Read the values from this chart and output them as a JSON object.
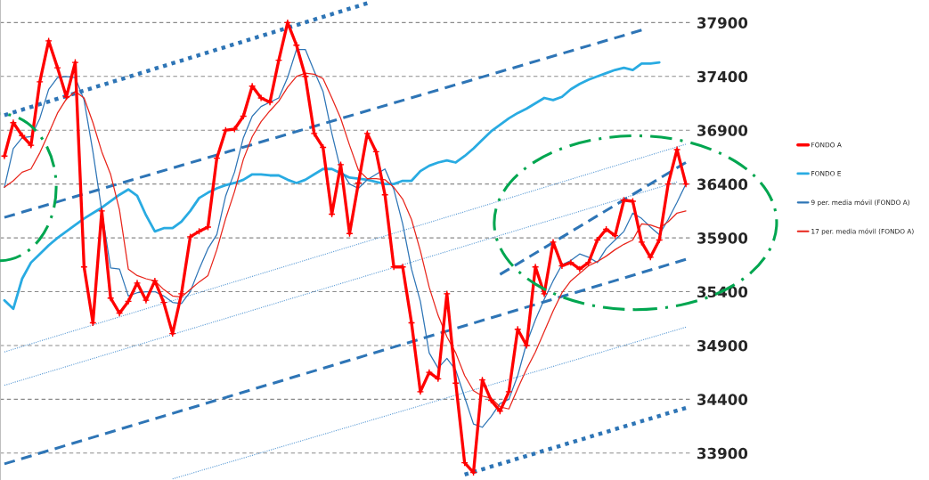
{
  "chart_data": {
    "type": "line",
    "categories": [
      null,
      null,
      null,
      null,
      null,
      null,
      null,
      null,
      null,
      null,
      null,
      null,
      null,
      null,
      null,
      null,
      null,
      null,
      null,
      null,
      null,
      null,
      null,
      null,
      null,
      null,
      null,
      null,
      null,
      null,
      null,
      null,
      null,
      null,
      null,
      null,
      null,
      null,
      null,
      null,
      null,
      null,
      null,
      null,
      null,
      null,
      null,
      null,
      null,
      null,
      null,
      null,
      null,
      null,
      null,
      null,
      null,
      null,
      null,
      null,
      null,
      null,
      null,
      null,
      null,
      null,
      null,
      null,
      null,
      null,
      null,
      null,
      null,
      null,
      null,
      null,
      null,
      null
    ],
    "ylim": [
      33650,
      38110
    ],
    "yticks": [
      33900,
      34400,
      34900,
      35400,
      35900,
      36400,
      36900,
      37400,
      37900
    ],
    "tick_labels": "y",
    "grid": "y",
    "legend": "right",
    "series": [
      {
        "name": "FONDO A",
        "color": "#ff0000",
        "marker": "cross",
        "values": [
          36660,
          36970,
          36850,
          36760,
          37350,
          37730,
          37480,
          37210,
          37530,
          35630,
          35110,
          36150,
          35340,
          35200,
          35310,
          35480,
          35320,
          35500,
          35300,
          35010,
          35380,
          35910,
          35960,
          36000,
          36640,
          36900,
          36910,
          37030,
          37310,
          37200,
          37160,
          37550,
          37900,
          37690,
          37400,
          36870,
          36740,
          36120,
          36580,
          35940,
          36410,
          36870,
          36700,
          36300,
          35630,
          35630,
          35110,
          34470,
          34650,
          34590,
          35380,
          34550,
          33810,
          33720,
          34580,
          34390,
          34290,
          34470,
          35050,
          34900,
          35630,
          35380,
          35860,
          35640,
          35670,
          35610,
          35670,
          35880,
          35980,
          35920,
          36250,
          36240,
          35860,
          35720,
          35880,
          36400,
          36720,
          36400
        ]
      },
      {
        "name": "FONDO E",
        "color": "#29abe2",
        "values": [
          35320,
          35240,
          35520,
          35670,
          35750,
          35830,
          35900,
          35960,
          36020,
          36080,
          36130,
          36180,
          36240,
          36300,
          36350,
          36290,
          36110,
          35960,
          35990,
          35990,
          36050,
          36150,
          36270,
          36320,
          36360,
          36390,
          36410,
          36440,
          36490,
          36490,
          36480,
          36480,
          36440,
          36410,
          36440,
          36490,
          36540,
          36540,
          36500,
          36460,
          36450,
          36440,
          36420,
          36400,
          36400,
          36430,
          36430,
          36520,
          36570,
          36600,
          36620,
          36600,
          36660,
          36730,
          36810,
          36890,
          36950,
          37010,
          37060,
          37100,
          37150,
          37200,
          37180,
          37210,
          37280,
          37330,
          37370,
          37400,
          37430,
          37460,
          37480,
          37460,
          37520,
          37520,
          37530,
          null,
          null,
          null
        ]
      },
      {
        "name": "9 per. media móvil (FONDO A)",
        "color": "#2e75b6",
        "values": [
          36370,
          36730,
          36830,
          36840,
          37010,
          37280,
          37390,
          37400,
          37390,
          37180,
          36700,
          36150,
          35620,
          35610,
          35360,
          35390,
          35400,
          35400,
          35360,
          35300,
          35290,
          35400,
          35610,
          35800,
          35930,
          36290,
          36510,
          36830,
          37030,
          37120,
          37160,
          37200,
          37390,
          37650,
          37650,
          37450,
          37260,
          36870,
          36530,
          36400,
          36360,
          36440,
          36490,
          36540,
          36350,
          36030,
          35610,
          35310,
          34830,
          34690,
          34780,
          34670,
          34420,
          34170,
          34140,
          34240,
          34360,
          34400,
          34620,
          34920,
          35140,
          35330,
          35500,
          35650,
          35690,
          35750,
          35720,
          35670,
          35800,
          35880,
          35960,
          36130,
          36080,
          36000,
          35930,
          36070,
          36230,
          36400
        ]
      },
      {
        "name": "17 per. media móvil (FONDO A)",
        "color": "#e8251b",
        "values": [
          36370,
          36430,
          36510,
          36540,
          36690,
          36870,
          37060,
          37190,
          37260,
          37200,
          36970,
          36700,
          36490,
          36160,
          35610,
          35550,
          35520,
          35500,
          35420,
          35360,
          35350,
          35420,
          35490,
          35550,
          35790,
          36080,
          36330,
          36630,
          36840,
          36980,
          37080,
          37170,
          37300,
          37400,
          37430,
          37420,
          37380,
          37200,
          37010,
          36760,
          36530,
          36450,
          36450,
          36440,
          36370,
          36260,
          36070,
          35780,
          35440,
          35180,
          34980,
          34830,
          34620,
          34480,
          34430,
          34410,
          34330,
          34310,
          34500,
          34680,
          34840,
          35030,
          35220,
          35390,
          35500,
          35570,
          35640,
          35680,
          35730,
          35790,
          35840,
          35880,
          36030,
          36020,
          35990,
          36050,
          36130,
          36150
        ]
      },
      {
        "color": "#2e75b6",
        "line_style": "dotted",
        "values": [
          37040,
          null,
          null,
          null,
          null,
          null,
          null,
          null,
          null,
          null,
          null,
          null,
          null,
          null,
          null,
          null,
          null,
          null,
          null,
          null,
          null,
          null,
          null,
          null,
          null,
          null,
          null,
          null,
          null,
          null,
          null,
          null,
          null,
          null,
          null,
          null,
          null,
          null,
          null,
          null,
          null,
          38080,
          null,
          null,
          null,
          null,
          null,
          null,
          null,
          null,
          null,
          null,
          null,
          null,
          null,
          null,
          null,
          null,
          null,
          null,
          null,
          null,
          null,
          null,
          null,
          null,
          null,
          null,
          null,
          null,
          null,
          null,
          null,
          null,
          null,
          null,
          null,
          null
        ]
      },
      {
        "color": "#2e75b6",
        "line_style": "dotted",
        "values": [
          null,
          null,
          null,
          null,
          null,
          null,
          null,
          null,
          null,
          null,
          null,
          null,
          null,
          null,
          null,
          null,
          null,
          null,
          null,
          null,
          null,
          null,
          null,
          null,
          null,
          null,
          null,
          null,
          null,
          null,
          null,
          null,
          null,
          null,
          null,
          null,
          null,
          null,
          null,
          null,
          null,
          null,
          null,
          null,
          null,
          null,
          null,
          null,
          null,
          null,
          null,
          null,
          33700,
          null,
          null,
          null,
          null,
          null,
          null,
          null,
          null,
          null,
          null,
          null,
          null,
          null,
          null,
          null,
          null,
          null,
          null,
          null,
          null,
          null,
          null,
          null,
          null,
          34320
        ]
      },
      {
        "color": "#2e75b6",
        "line_style": "dashed",
        "values": [
          36090,
          null,
          null,
          null,
          null,
          null,
          null,
          null,
          null,
          null,
          null,
          null,
          null,
          null,
          null,
          null,
          null,
          null,
          null,
          null,
          null,
          null,
          null,
          null,
          null,
          null,
          null,
          null,
          null,
          null,
          null,
          null,
          null,
          null,
          null,
          null,
          null,
          null,
          null,
          null,
          null,
          null,
          null,
          null,
          null,
          null,
          null,
          null,
          null,
          null,
          null,
          null,
          null,
          null,
          null,
          null,
          null,
          null,
          null,
          null,
          null,
          null,
          null,
          null,
          null,
          null,
          null,
          null,
          null,
          null,
          null,
          null,
          37830,
          null,
          null,
          null,
          null,
          null
        ]
      },
      {
        "color": "#2e75b6",
        "line_style": "dashed",
        "values": [
          33800,
          null,
          null,
          null,
          null,
          null,
          null,
          null,
          null,
          null,
          null,
          null,
          null,
          null,
          null,
          null,
          null,
          null,
          null,
          null,
          null,
          null,
          null,
          null,
          null,
          null,
          null,
          null,
          null,
          null,
          null,
          null,
          null,
          null,
          null,
          null,
          null,
          null,
          null,
          null,
          null,
          null,
          null,
          null,
          null,
          null,
          null,
          null,
          null,
          null,
          null,
          null,
          null,
          null,
          null,
          null,
          null,
          null,
          null,
          null,
          null,
          null,
          null,
          null,
          null,
          null,
          null,
          null,
          null,
          null,
          null,
          null,
          null,
          null,
          null,
          null,
          null,
          35700
        ]
      },
      {
        "color": "#2e75b6",
        "line_style": "dashed",
        "values": [
          null,
          null,
          null,
          null,
          null,
          null,
          null,
          null,
          null,
          null,
          null,
          null,
          null,
          null,
          null,
          null,
          null,
          null,
          null,
          null,
          null,
          null,
          null,
          null,
          null,
          null,
          null,
          null,
          null,
          null,
          null,
          null,
          null,
          null,
          null,
          null,
          null,
          null,
          null,
          null,
          null,
          null,
          null,
          null,
          null,
          null,
          null,
          null,
          null,
          null,
          null,
          null,
          null,
          null,
          null,
          null,
          35560,
          null,
          null,
          null,
          null,
          null,
          null,
          null,
          null,
          null,
          null,
          null,
          null,
          null,
          null,
          null,
          null,
          null,
          null,
          null,
          null,
          36600
        ]
      },
      {
        "color": "#5b9bd5",
        "line_style": "dotted",
        "values": [
          34840,
          null,
          null,
          null,
          null,
          null,
          null,
          null,
          null,
          null,
          null,
          null,
          null,
          null,
          null,
          null,
          null,
          null,
          null,
          null,
          null,
          null,
          null,
          null,
          null,
          null,
          null,
          null,
          null,
          null,
          null,
          null,
          null,
          null,
          null,
          null,
          null,
          null,
          null,
          null,
          null,
          null,
          null,
          null,
          null,
          null,
          null,
          null,
          null,
          null,
          null,
          null,
          null,
          null,
          null,
          null,
          null,
          null,
          null,
          null,
          null,
          null,
          null,
          null,
          null,
          null,
          null,
          null,
          null,
          null,
          null,
          null,
          null,
          null,
          null,
          null,
          null,
          36770
        ]
      },
      {
        "color": "#5b9bd5",
        "line_style": "dotted",
        "values": [
          34530,
          null,
          null,
          null,
          null,
          null,
          null,
          null,
          null,
          null,
          null,
          null,
          null,
          null,
          null,
          null,
          null,
          null,
          null,
          null,
          null,
          null,
          null,
          null,
          null,
          null,
          null,
          null,
          null,
          null,
          null,
          null,
          null,
          null,
          null,
          null,
          null,
          null,
          null,
          null,
          null,
          null,
          null,
          null,
          null,
          null,
          null,
          null,
          null,
          null,
          null,
          null,
          null,
          null,
          null,
          null,
          null,
          null,
          null,
          null,
          null,
          null,
          null,
          null,
          null,
          null,
          null,
          null,
          null,
          null,
          null,
          null,
          null,
          null,
          null,
          null,
          36420,
          null
        ]
      },
      {
        "color": "#5b9bd5",
        "line_style": "dotted",
        "values": [
          null,
          null,
          null,
          null,
          null,
          null,
          null,
          null,
          null,
          null,
          null,
          null,
          null,
          null,
          null,
          null,
          null,
          null,
          null,
          33660,
          null,
          null,
          null,
          null,
          null,
          null,
          null,
          null,
          null,
          null,
          null,
          null,
          null,
          null,
          null,
          null,
          null,
          null,
          null,
          null,
          null,
          null,
          null,
          null,
          null,
          null,
          null,
          null,
          null,
          null,
          null,
          null,
          null,
          null,
          null,
          null,
          null,
          null,
          null,
          null,
          null,
          null,
          null,
          null,
          null,
          null,
          null,
          null,
          null,
          null,
          null,
          null,
          null,
          null,
          null,
          null,
          null,
          35070
        ]
      }
    ]
  }
}
